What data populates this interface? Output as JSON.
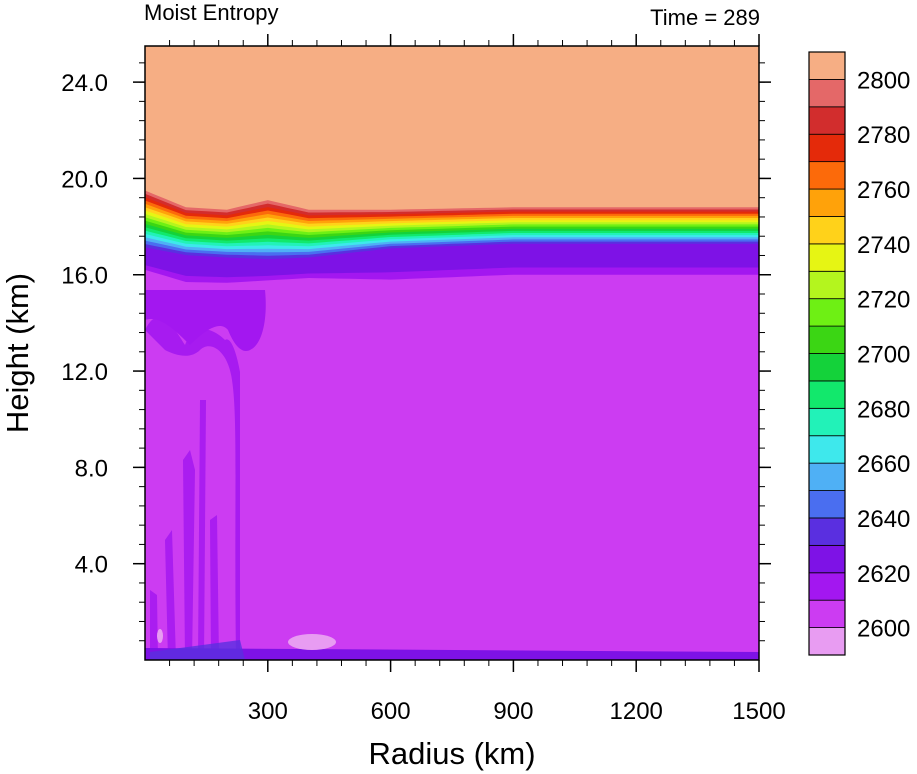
{
  "chart_data": {
    "type": "heatmap",
    "title": "Moist Entropy",
    "subtitle": "Time = 289",
    "xlabel": "Radius (km)",
    "ylabel": "Height (km)",
    "xlim": [
      0,
      1500
    ],
    "ylim": [
      0,
      25.5
    ],
    "x_ticks": [
      300,
      600,
      900,
      1200,
      1500
    ],
    "x_tick_labels": [
      "300",
      "600",
      "900",
      "1200",
      "1500"
    ],
    "y_ticks": [
      4,
      8,
      12,
      16,
      20,
      24
    ],
    "y_tick_labels": [
      "4.0",
      "8.0",
      "12.0",
      "16.0",
      "20.0",
      "24.0"
    ],
    "colorbar": {
      "placement": "right",
      "levels": [
        2600,
        2610,
        2620,
        2630,
        2640,
        2650,
        2660,
        2670,
        2680,
        2690,
        2700,
        2710,
        2720,
        2730,
        2740,
        2750,
        2760,
        2770,
        2780,
        2790,
        2800
      ],
      "tick_labels": [
        "2600",
        "2620",
        "2640",
        "2660",
        "2680",
        "2700",
        "2720",
        "2740",
        "2760",
        "2780",
        "2800"
      ],
      "colors": [
        "#e89cf2",
        "#cc3cf2",
        "#a317f0",
        "#7e12e6",
        "#5a2fe0",
        "#4a6ef0",
        "#4fb0f5",
        "#3ee8ec",
        "#22f2b8",
        "#12e86c",
        "#14d23a",
        "#3bd614",
        "#6ef014",
        "#b4f51e",
        "#e6f514",
        "#ffd21a",
        "#ffa20a",
        "#fc6a0a",
        "#e42a0a",
        "#d22d2d",
        "#e46868",
        "#f6ae84"
      ]
    },
    "field": {
      "background_level": "2600-2610",
      "profile_x": [
        0,
        100,
        200,
        300,
        400,
        600,
        900,
        1200,
        1500
      ],
      "profile_top_km": [
        19.5,
        18.8,
        18.7,
        19.1,
        18.7,
        18.7,
        18.8,
        18.8,
        18.8
      ],
      "profile_mid_km": [
        17.0,
        16.7,
        16.6,
        16.5,
        16.6,
        17.0,
        17.2,
        17.2,
        17.2
      ],
      "profile_base_km": [
        15.8,
        15.2,
        15.2,
        15.4,
        15.5,
        15.2,
        15.4,
        15.4,
        15.4
      ]
    }
  }
}
